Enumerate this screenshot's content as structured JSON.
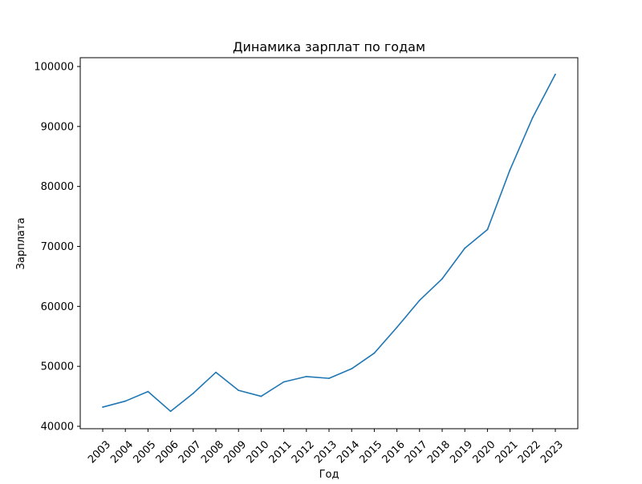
{
  "chart_data": {
    "type": "line",
    "title": "Динамика зарплат по годам",
    "xlabel": "Год",
    "ylabel": "Зарплата",
    "x": [
      "2003",
      "2004",
      "2005",
      "2006",
      "2007",
      "2008",
      "2009",
      "2010",
      "2011",
      "2012",
      "2013",
      "2014",
      "2015",
      "2016",
      "2017",
      "2018",
      "2019",
      "2020",
      "2021",
      "2022",
      "2023"
    ],
    "series": [
      {
        "values": [
          43200,
          44200,
          45800,
          42500,
          45500,
          49000,
          46000,
          45000,
          47400,
          48300,
          48000,
          49600,
          52200,
          56500,
          61000,
          64600,
          69700,
          72800,
          82800,
          91500,
          98700
        ],
        "color": "#1f77b4"
      }
    ],
    "ylim": [
      40000,
      100000
    ],
    "yticks": [
      40000,
      50000,
      60000,
      70000,
      80000,
      90000,
      100000
    ],
    "grid": false,
    "legend": "none"
  }
}
